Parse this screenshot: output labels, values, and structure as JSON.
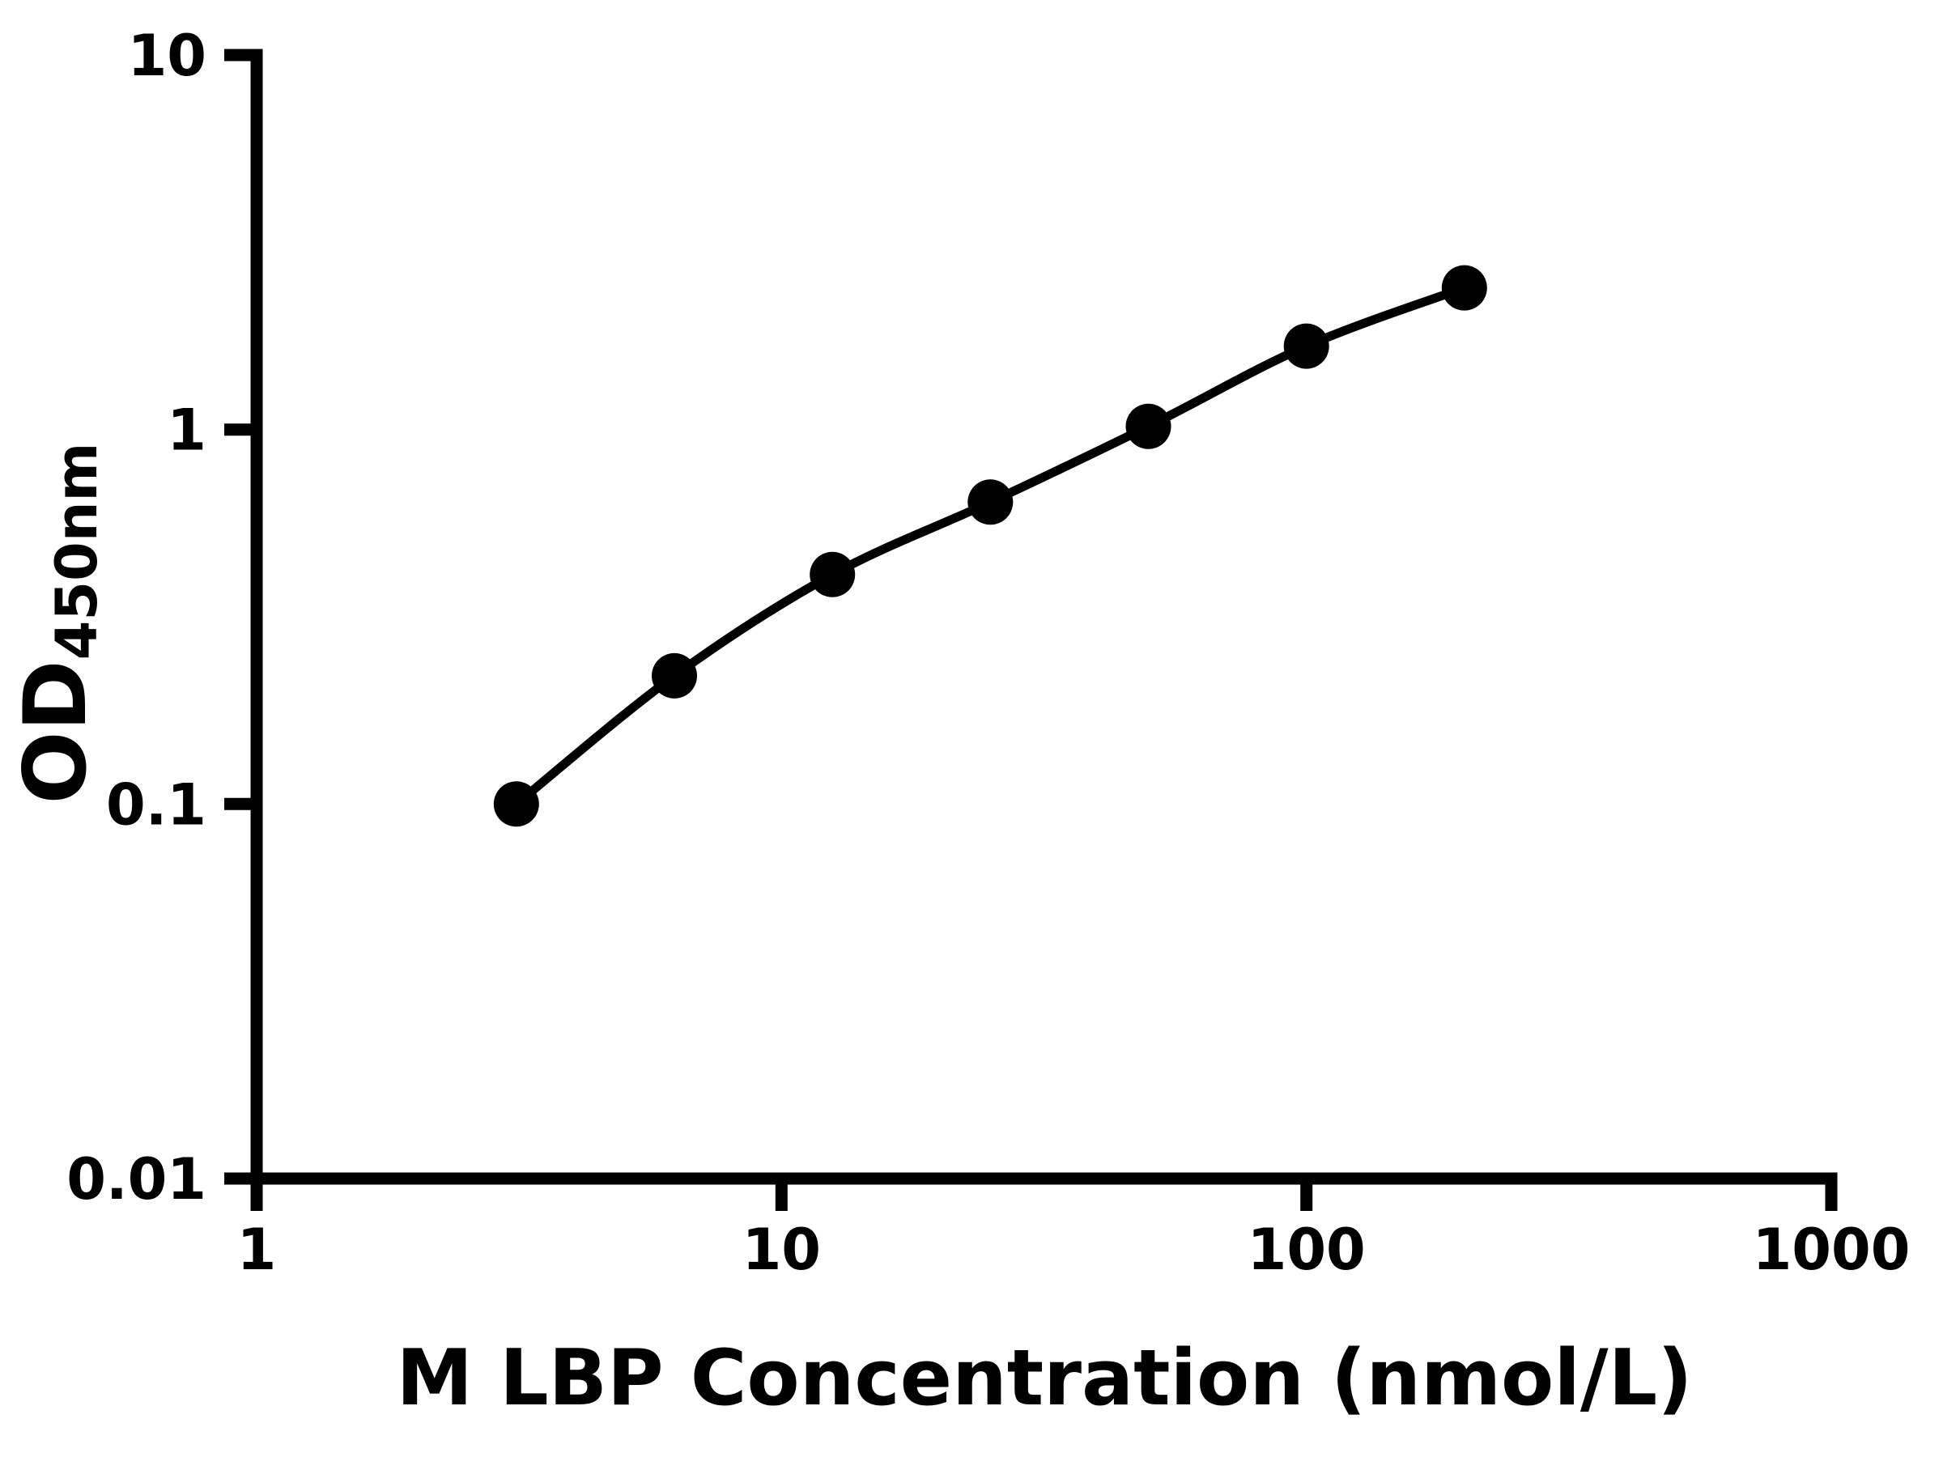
{
  "figure": {
    "background": "#ffffff",
    "foreground": "#000000"
  },
  "chart_data": {
    "type": "line",
    "subtype": "scatter-with-smooth-curve",
    "title": "",
    "xlabel": "M LBP Concentration (nmol/L)",
    "ylabel_main": "OD",
    "ylabel_sub": "450nm",
    "x_scale": "log10",
    "y_scale": "log10",
    "xlim": [
      1,
      1000
    ],
    "ylim": [
      0.01,
      10
    ],
    "x_ticks": [
      1,
      10,
      100,
      1000
    ],
    "x_tick_labels": [
      "1",
      "10",
      "100",
      "1000"
    ],
    "y_ticks": [
      0.01,
      0.1,
      1,
      10
    ],
    "y_tick_labels": [
      "0.01",
      "0.1",
      "1",
      "10"
    ],
    "grid": false,
    "legend": null,
    "marker": "filled-circle",
    "line_color": "#000000",
    "marker_color": "#000000",
    "series": [
      {
        "points": [
          {
            "x": 3.125,
            "y": 0.1
          },
          {
            "x": 6.25,
            "y": 0.22
          },
          {
            "x": 12.5,
            "y": 0.41
          },
          {
            "x": 25,
            "y": 0.64
          },
          {
            "x": 50,
            "y": 1.02
          },
          {
            "x": 100,
            "y": 1.67
          },
          {
            "x": 200,
            "y": 2.39
          }
        ]
      }
    ]
  }
}
